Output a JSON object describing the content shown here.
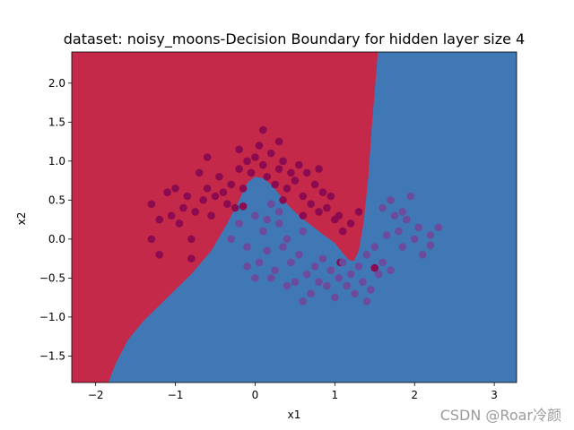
{
  "chart_data": {
    "type": "scatter",
    "title": "dataset: noisy_moons-Decision Boundary for hidden layer size 4",
    "xlabel": "x1",
    "ylabel": "x2",
    "xlim": [
      -2.3,
      3.28
    ],
    "ylim": [
      -1.84,
      2.4
    ],
    "x_ticks": [
      {
        "value": -2,
        "label": "−2"
      },
      {
        "value": -1,
        "label": "−1"
      },
      {
        "value": 0,
        "label": "0"
      },
      {
        "value": 1,
        "label": "1"
      },
      {
        "value": 2,
        "label": "2"
      },
      {
        "value": 3,
        "label": "3"
      }
    ],
    "y_ticks": [
      {
        "value": -1.5,
        "label": "−1.5"
      },
      {
        "value": -1.0,
        "label": "−1.0"
      },
      {
        "value": -0.5,
        "label": "−0.5"
      },
      {
        "value": 0.0,
        "label": "0.0"
      },
      {
        "value": 0.5,
        "label": "0.5"
      },
      {
        "value": 1.0,
        "label": "1.0"
      },
      {
        "value": 1.5,
        "label": "1.5"
      },
      {
        "value": 2.0,
        "label": "2.0"
      }
    ],
    "grid": false,
    "legend": "none",
    "regions": {
      "class0_color": "#c4294a",
      "class1_color": "#3f78b5",
      "boundary": [
        [
          -1.84,
          -1.84
        ],
        [
          -1.75,
          -1.6
        ],
        [
          -1.6,
          -1.3
        ],
        [
          -1.4,
          -1.05
        ],
        [
          -1.1,
          -0.75
        ],
        [
          -0.8,
          -0.45
        ],
        [
          -0.55,
          -0.15
        ],
        [
          -0.35,
          0.2
        ],
        [
          -0.2,
          0.5
        ],
        [
          -0.1,
          0.72
        ],
        [
          0.0,
          0.8
        ],
        [
          0.1,
          0.78
        ],
        [
          0.2,
          0.7
        ],
        [
          0.3,
          0.58
        ],
        [
          0.4,
          0.45
        ],
        [
          0.55,
          0.3
        ],
        [
          0.7,
          0.18
        ],
        [
          0.85,
          0.06
        ],
        [
          1.0,
          -0.05
        ],
        [
          1.1,
          -0.18
        ],
        [
          1.18,
          -0.27
        ],
        [
          1.24,
          -0.28
        ],
        [
          1.3,
          -0.15
        ],
        [
          1.36,
          0.2
        ],
        [
          1.42,
          0.8
        ],
        [
          1.46,
          1.4
        ],
        [
          1.5,
          1.9
        ],
        [
          1.54,
          2.4
        ]
      ]
    },
    "series": [
      {
        "color": "#8b0a50",
        "points": [
          [
            -1.3,
            0.45
          ],
          [
            -1.2,
            0.25
          ],
          [
            -1.1,
            0.6
          ],
          [
            -1.05,
            0.3
          ],
          [
            -1.0,
            0.65
          ],
          [
            -0.95,
            0.2
          ],
          [
            -0.9,
            0.4
          ],
          [
            -0.85,
            0.55
          ],
          [
            -0.8,
            0.0
          ],
          [
            -0.75,
            0.35
          ],
          [
            -0.7,
            0.85
          ],
          [
            -0.65,
            0.5
          ],
          [
            -0.6,
            0.65
          ],
          [
            -0.55,
            0.3
          ],
          [
            -0.5,
            0.55
          ],
          [
            -0.45,
            0.8
          ],
          [
            -0.4,
            0.6
          ],
          [
            -0.35,
            0.45
          ],
          [
            -0.3,
            0.7
          ],
          [
            -0.25,
            0.4
          ],
          [
            -0.2,
            0.9
          ],
          [
            -0.15,
            0.65
          ],
          [
            -0.1,
            1.0
          ],
          [
            -0.05,
            0.85
          ],
          [
            0.0,
            1.05
          ],
          [
            0.05,
            1.2
          ],
          [
            0.1,
            0.95
          ],
          [
            0.15,
            0.8
          ],
          [
            0.2,
            1.1
          ],
          [
            0.25,
            0.7
          ],
          [
            0.3,
            0.9
          ],
          [
            0.35,
            1.0
          ],
          [
            0.4,
            0.65
          ],
          [
            0.45,
            0.85
          ],
          [
            0.5,
            0.75
          ],
          [
            0.55,
            0.95
          ],
          [
            0.6,
            0.55
          ],
          [
            0.65,
            0.85
          ],
          [
            0.7,
            0.45
          ],
          [
            0.75,
            0.7
          ],
          [
            0.8,
            0.35
          ],
          [
            0.85,
            0.6
          ],
          [
            0.9,
            0.4
          ],
          [
            0.95,
            0.55
          ],
          [
            1.0,
            0.25
          ],
          [
            1.05,
            0.3
          ],
          [
            1.1,
            0.1
          ],
          [
            1.2,
            0.2
          ],
          [
            1.3,
            0.35
          ],
          [
            -1.3,
            0.0
          ],
          [
            -1.2,
            -0.2
          ],
          [
            -0.8,
            -0.25
          ],
          [
            -0.6,
            1.05
          ],
          [
            0.3,
            1.25
          ],
          [
            0.1,
            1.4
          ],
          [
            -0.2,
            1.15
          ],
          [
            0.8,
            0.9
          ],
          [
            0.6,
            0.3
          ],
          [
            0.35,
            0.5
          ],
          [
            -0.15,
            0.42
          ],
          [
            1.07,
            -0.3
          ],
          [
            1.5,
            -0.37
          ]
        ]
      },
      {
        "color": "#6d4b9c",
        "points": [
          [
            -0.3,
            0.0
          ],
          [
            -0.2,
            0.2
          ],
          [
            -0.1,
            -0.1
          ],
          [
            0.0,
            0.3
          ],
          [
            0.05,
            -0.3
          ],
          [
            0.1,
            0.1
          ],
          [
            0.15,
            -0.15
          ],
          [
            0.2,
            0.45
          ],
          [
            0.25,
            -0.4
          ],
          [
            0.3,
            0.2
          ],
          [
            0.35,
            -0.1
          ],
          [
            0.4,
            0.0
          ],
          [
            0.45,
            -0.3
          ],
          [
            0.5,
            -0.55
          ],
          [
            0.55,
            -0.2
          ],
          [
            0.6,
            0.1
          ],
          [
            0.65,
            -0.45
          ],
          [
            0.7,
            -0.7
          ],
          [
            0.75,
            -0.35
          ],
          [
            0.8,
            -0.55
          ],
          [
            0.85,
            -0.25
          ],
          [
            0.9,
            -0.6
          ],
          [
            0.95,
            -0.4
          ],
          [
            1.0,
            -0.75
          ],
          [
            1.05,
            -0.5
          ],
          [
            1.1,
            -0.3
          ],
          [
            1.15,
            -0.6
          ],
          [
            1.2,
            -0.45
          ],
          [
            1.25,
            -0.7
          ],
          [
            1.3,
            -0.35
          ],
          [
            1.35,
            -0.55
          ],
          [
            1.4,
            -0.2
          ],
          [
            1.45,
            -0.65
          ],
          [
            1.5,
            -0.1
          ],
          [
            1.55,
            -0.45
          ],
          [
            1.6,
            -0.3
          ],
          [
            1.65,
            0.05
          ],
          [
            1.7,
            -0.4
          ],
          [
            1.75,
            0.3
          ],
          [
            1.8,
            0.1
          ],
          [
            1.85,
            -0.1
          ],
          [
            1.9,
            0.25
          ],
          [
            1.95,
            0.55
          ],
          [
            2.0,
            0.0
          ],
          [
            2.05,
            0.15
          ],
          [
            2.1,
            -0.2
          ],
          [
            2.2,
            0.05
          ],
          [
            2.3,
            0.15
          ],
          [
            1.7,
            0.5
          ],
          [
            1.85,
            0.35
          ],
          [
            0.2,
            -0.5
          ],
          [
            0.4,
            -0.6
          ],
          [
            0.6,
            -0.8
          ],
          [
            0.0,
            -0.5
          ],
          [
            -0.1,
            -0.35
          ],
          [
            0.3,
            0.35
          ],
          [
            0.15,
            0.25
          ],
          [
            1.4,
            -0.8
          ],
          [
            1.6,
            0.4
          ],
          [
            2.2,
            -0.08
          ]
        ]
      }
    ]
  },
  "watermark": "CSDN @Roar冷颜"
}
